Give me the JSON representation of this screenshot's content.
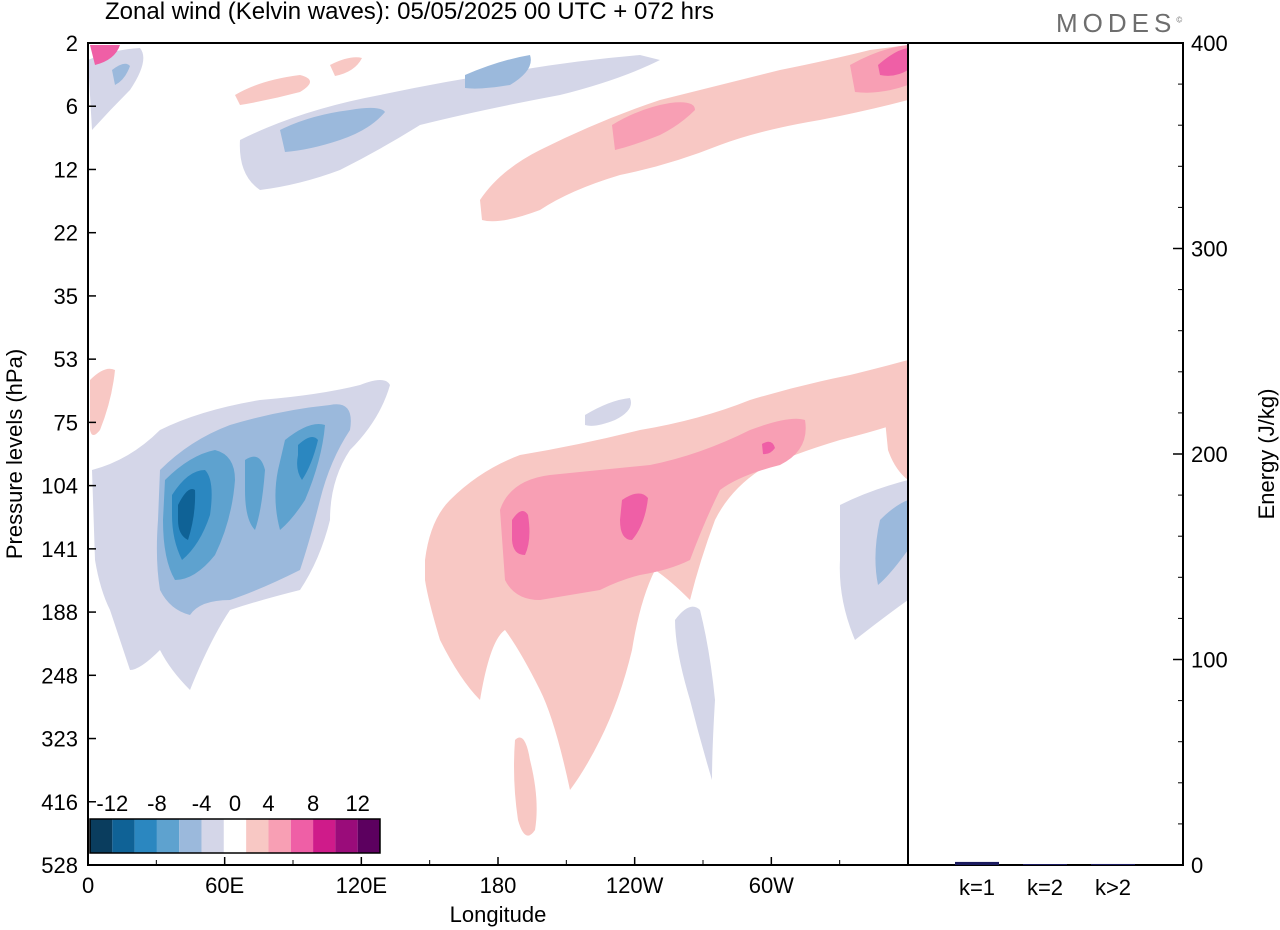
{
  "title": "Zonal wind (Kelvin waves):  05/05/2025  00 UTC  + 072 hrs",
  "logo": "MODES",
  "chart_data": [
    {
      "type": "heatmap",
      "title": "Zonal wind (Kelvin waves):  05/05/2025  00 UTC  + 072 hrs",
      "xlabel": "Longitude",
      "ylabel": "Pressure levels (hPa)",
      "x_ticks": [
        "0",
        "60E",
        "120E",
        "180",
        "120W",
        "60W"
      ],
      "x_tick_degrees": [
        0,
        60,
        120,
        180,
        240,
        300
      ],
      "xlim": [
        0,
        360
      ],
      "y_ticks": [
        "2",
        "6",
        "12",
        "22",
        "35",
        "53",
        "75",
        "104",
        "141",
        "188",
        "248",
        "323",
        "416",
        "528"
      ],
      "y_scale": "pressure levels, reversed (2 hPa at top)",
      "colorbar": {
        "tick_labels": [
          "-12",
          "-8",
          "-4",
          "0",
          "4",
          "8",
          "12"
        ],
        "levels": [
          -14,
          -12,
          -10,
          -8,
          -6,
          -4,
          -2,
          2,
          4,
          6,
          8,
          10,
          12,
          14
        ],
        "colors": [
          "#0a3d5e",
          "#0f6296",
          "#2b87c0",
          "#5ea2cf",
          "#9bb9dc",
          "#d4d6e8",
          "#ffffff",
          "#f8c8c4",
          "#f89fb4",
          "#ef5fa6",
          "#cf1b8a",
          "#9a0c7a",
          "#5c005f"
        ],
        "position": "bottom-left"
      },
      "features": [
        {
          "sign": "negative",
          "levels_hPa": [
            75,
            200
          ],
          "longitudes": [
            30,
            105
          ],
          "peak": -12,
          "tilt": "eastward-upward"
        },
        {
          "sign": "positive",
          "levels_hPa": [
            75,
            400
          ],
          "longitudes": [
            150,
            360
          ],
          "peak": 10
        },
        {
          "sign": "negative",
          "levels_hPa": [
            2,
            12
          ],
          "longitudes": [
            0,
            135
          ],
          "peak": -6
        },
        {
          "sign": "positive",
          "levels_hPa": [
            2,
            22
          ],
          "longitudes": [
            165,
            360
          ],
          "peak": 10
        }
      ]
    },
    {
      "type": "bar",
      "categories": [
        "k=1",
        "k=2",
        "k>2"
      ],
      "values": [
        1.5,
        0.3,
        0.5
      ],
      "ylabel": "Energy (J/kg)",
      "ylim": [
        0,
        400
      ],
      "y_ticks": [
        "0",
        "100",
        "200",
        "300",
        "400"
      ],
      "bar_color": "#1a1a5e"
    }
  ]
}
